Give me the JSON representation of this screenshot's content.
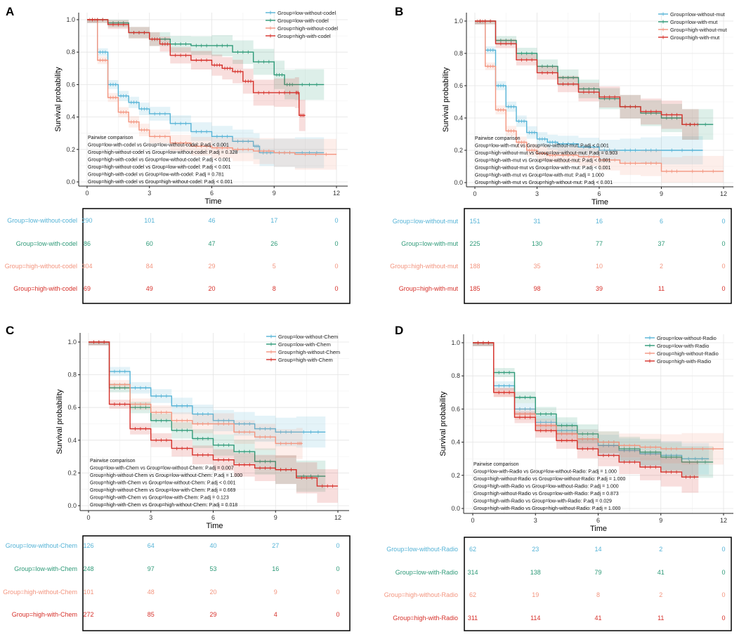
{
  "figure": {
    "colors": {
      "c0": "#55b3d6",
      "c1": "#2e9a78",
      "c2": "#f3957f",
      "c3": "#d6302a"
    }
  },
  "chart_data": [
    {
      "type": "line",
      "panel": "A",
      "xlabel": "Time",
      "ylabel": "Survival probability",
      "xlim": [
        0,
        12
      ],
      "ylim": [
        0,
        1
      ],
      "xticks": [
        "0",
        "3",
        "6",
        "9",
        "12"
      ],
      "yticks": [
        "0.0",
        "0.2",
        "0.4",
        "0.6",
        "0.8",
        "1.0"
      ],
      "series": [
        {
          "name": "Group=low-without-codel",
          "x": [
            0,
            0.5,
            1,
            1.5,
            2,
            2.5,
            3,
            4,
            5,
            6,
            7,
            8,
            8.3,
            9,
            10,
            11.4
          ],
          "y": [
            1,
            0.8,
            0.6,
            0.53,
            0.49,
            0.45,
            0.42,
            0.36,
            0.31,
            0.28,
            0.25,
            0.22,
            0.18,
            0.18,
            0.18,
            0.18
          ]
        },
        {
          "name": "Group=low-with-codel",
          "x": [
            0,
            1,
            2,
            3,
            4,
            5,
            6,
            7,
            8,
            9,
            9.5,
            10,
            11.4
          ],
          "y": [
            1,
            0.98,
            0.92,
            0.88,
            0.85,
            0.84,
            0.84,
            0.8,
            0.74,
            0.66,
            0.6,
            0.6,
            0.6
          ]
        },
        {
          "name": "Group=high-without-codel",
          "x": [
            0,
            0.5,
            1,
            1.5,
            2,
            2.5,
            3,
            4,
            5,
            6,
            7,
            8,
            9,
            10,
            12
          ],
          "y": [
            1,
            0.75,
            0.52,
            0.43,
            0.37,
            0.32,
            0.28,
            0.24,
            0.22,
            0.21,
            0.2,
            0.19,
            0.18,
            0.17,
            0.17
          ]
        },
        {
          "name": "Group=high-with-codel",
          "x": [
            0,
            1,
            2,
            3,
            3.5,
            4,
            5,
            6,
            6.5,
            7,
            7.5,
            8,
            9,
            10,
            10.2,
            10.5
          ],
          "y": [
            1,
            0.97,
            0.92,
            0.88,
            0.85,
            0.78,
            0.75,
            0.72,
            0.7,
            0.68,
            0.62,
            0.55,
            0.55,
            0.55,
            0.41,
            0.41
          ]
        }
      ],
      "pairwise": [
        "Pairwise comparison",
        "Group=low-with-codel vs Group=low-without-codel: P.adj < 0.001",
        "Group=high-without-codel vs Group=low-without-codel: P.adj = 0.328",
        "Group=high-with-codel vs Group=low-without-codel: P.adj < 0.001",
        "Group=high-without-codel vs Group=low-with-codel: P.adj < 0.001",
        "Group=high-with-codel vs Group=low-with-codel: P.adj = 0.781",
        "Group=high-with-codel vs Group=high-without-codel: P.adj < 0.001"
      ],
      "risk_table": [
        {
          "group": "Group=low-without-codel",
          "n": [
            "290",
            "101",
            "46",
            "17",
            "0"
          ]
        },
        {
          "group": "Group=low-with-codel",
          "n": [
            "86",
            "60",
            "47",
            "26",
            "0"
          ]
        },
        {
          "group": "Group=high-without-codel",
          "n": [
            "304",
            "84",
            "29",
            "5",
            "0"
          ]
        },
        {
          "group": "Group=high-with-codel",
          "n": [
            "69",
            "49",
            "20",
            "8",
            "0"
          ]
        }
      ]
    },
    {
      "type": "line",
      "panel": "B",
      "xlabel": "Time",
      "ylabel": "Survival probability",
      "xlim": [
        0,
        12
      ],
      "ylim": [
        0,
        1
      ],
      "xticks": [
        "0",
        "3",
        "6",
        "9",
        "12"
      ],
      "yticks": [
        "0.0",
        "0.2",
        "0.4",
        "0.6",
        "0.8",
        "1.0"
      ],
      "series": [
        {
          "name": "Group=low-without-mut",
          "x": [
            0,
            0.5,
            1,
            1.5,
            2,
            2.5,
            3,
            3.5,
            4,
            5,
            6,
            7,
            8,
            9,
            11
          ],
          "y": [
            1,
            0.82,
            0.6,
            0.47,
            0.38,
            0.31,
            0.27,
            0.25,
            0.24,
            0.22,
            0.2,
            0.2,
            0.2,
            0.2,
            0.2
          ]
        },
        {
          "name": "Group=low-with-mut",
          "x": [
            0,
            1,
            2,
            3,
            4,
            5,
            6,
            7,
            8,
            9,
            10,
            11.5
          ],
          "y": [
            1,
            0.88,
            0.8,
            0.72,
            0.65,
            0.58,
            0.52,
            0.47,
            0.43,
            0.4,
            0.36,
            0.36
          ]
        },
        {
          "name": "Group=high-without-mut",
          "x": [
            0,
            0.5,
            1,
            1.5,
            2,
            2.5,
            3,
            3.5,
            4,
            5,
            6,
            7,
            8,
            9,
            10,
            12
          ],
          "y": [
            1,
            0.72,
            0.45,
            0.32,
            0.25,
            0.2,
            0.18,
            0.17,
            0.17,
            0.16,
            0.14,
            0.12,
            0.12,
            0.07,
            0.07,
            0.07
          ]
        },
        {
          "name": "Group=high-with-mut",
          "x": [
            0,
            1,
            2,
            3,
            4,
            5,
            6,
            7,
            8,
            9,
            10,
            10.8
          ],
          "y": [
            1,
            0.86,
            0.76,
            0.68,
            0.61,
            0.56,
            0.53,
            0.47,
            0.44,
            0.42,
            0.36,
            0.36
          ]
        }
      ],
      "pairwise": [
        "Pairwise comparison",
        "Group=low-with-mut vs Group=low-without-mut: P.adj < 0.001",
        "Group=high-without-mut vs Group=low-without-mut: P.adj = 0.903",
        "Group=high-with-mut vs Group=low-without-mut: P.adj < 0.001",
        "Group=high-without-mut vs Group=low-with-mut: P.adj < 0.001",
        "Group=high-with-mut vs Group=low-with-mut: P.adj = 1.000",
        "Group=high-with-mut vs Group=high-without-mut: P.adj < 0.001"
      ],
      "risk_table": [
        {
          "group": "Group=low-without-mut",
          "n": [
            "151",
            "31",
            "16",
            "6",
            "0"
          ]
        },
        {
          "group": "Group=low-with-mut",
          "n": [
            "225",
            "130",
            "77",
            "37",
            "0"
          ]
        },
        {
          "group": "Group=high-without-mut",
          "n": [
            "188",
            "35",
            "10",
            "2",
            "0"
          ]
        },
        {
          "group": "Group=high-with-mut",
          "n": [
            "185",
            "98",
            "39",
            "11",
            "0"
          ]
        }
      ]
    },
    {
      "type": "line",
      "panel": "C",
      "xlabel": "Time",
      "ylabel": "Survival probability",
      "xlim": [
        0,
        12
      ],
      "ylim": [
        0,
        1
      ],
      "xticks": [
        "0",
        "3",
        "6",
        "9",
        "12"
      ],
      "yticks": [
        "0.0",
        "0.2",
        "0.4",
        "0.6",
        "0.8",
        "1.0"
      ],
      "series": [
        {
          "name": "Group=low-without-Chem",
          "x": [
            0,
            1,
            2,
            3,
            4,
            5,
            6,
            7,
            8,
            9,
            10,
            11.4
          ],
          "y": [
            1,
            0.82,
            0.72,
            0.67,
            0.61,
            0.56,
            0.52,
            0.5,
            0.47,
            0.45,
            0.45,
            0.45
          ]
        },
        {
          "name": "Group=low-with-Chem",
          "x": [
            0,
            1,
            2,
            3,
            4,
            5,
            6,
            7,
            8,
            9,
            10,
            11.4
          ],
          "y": [
            1,
            0.72,
            0.6,
            0.52,
            0.46,
            0.41,
            0.37,
            0.33,
            0.27,
            0.22,
            0.18,
            0.18
          ]
        },
        {
          "name": "Group=high-without-Chem",
          "x": [
            0,
            1,
            2,
            3,
            4,
            5,
            6,
            7,
            8,
            9,
            10,
            10.3
          ],
          "y": [
            1,
            0.74,
            0.62,
            0.57,
            0.52,
            0.5,
            0.5,
            0.45,
            0.42,
            0.38,
            0.38,
            0.38
          ]
        },
        {
          "name": "Group=high-with-Chem",
          "x": [
            0,
            1,
            2,
            3,
            4,
            5,
            6,
            7,
            8,
            9,
            10,
            11,
            12
          ],
          "y": [
            1,
            0.62,
            0.47,
            0.4,
            0.35,
            0.31,
            0.28,
            0.25,
            0.23,
            0.22,
            0.17,
            0.12,
            0.12
          ]
        }
      ],
      "pairwise": [
        "Pairwise comparison",
        "Group=low-with-Chem vs Group=low-without-Chem: P.adj = 0.007",
        "Group=high-without-Chem vs Group=low-without-Chem: P.adj = 1.000",
        "Group=high-with-Chem vs Group=low-without-Chem: P.adj < 0.001",
        "Group=high-without-Chem vs Group=low-with-Chem: P.adj = 0.669",
        "Group=high-with-Chem vs Group=low-with-Chem: P.adj = 0.123",
        "Group=high-with-Chem vs Group=high-without-Chem: P.adj = 0.018"
      ],
      "risk_table": [
        {
          "group": "Group=low-without-Chem",
          "n": [
            "126",
            "64",
            "40",
            "27",
            "0"
          ]
        },
        {
          "group": "Group=low-with-Chem",
          "n": [
            "248",
            "97",
            "53",
            "16",
            "0"
          ]
        },
        {
          "group": "Group=high-without-Chem",
          "n": [
            "101",
            "48",
            "20",
            "9",
            "0"
          ]
        },
        {
          "group": "Group=high-with-Chem",
          "n": [
            "272",
            "85",
            "29",
            "4",
            "0"
          ]
        }
      ]
    },
    {
      "type": "line",
      "panel": "D",
      "xlabel": "Time",
      "ylabel": "Survival probability",
      "xlim": [
        0,
        12
      ],
      "ylim": [
        0,
        1
      ],
      "xticks": [
        "0",
        "3",
        "6",
        "9",
        "12"
      ],
      "yticks": [
        "0.0",
        "0.2",
        "0.4",
        "0.6",
        "0.8",
        "1.0"
      ],
      "series": [
        {
          "name": "Group=low-without-Radio",
          "x": [
            0,
            1,
            2,
            3,
            4,
            5,
            6,
            7,
            8,
            9,
            10,
            11.3
          ],
          "y": [
            1,
            0.74,
            0.6,
            0.52,
            0.47,
            0.42,
            0.38,
            0.35,
            0.33,
            0.32,
            0.3,
            0.3
          ]
        },
        {
          "name": "Group=low-with-Radio",
          "x": [
            0,
            1,
            2,
            3,
            4,
            5,
            6,
            7,
            8,
            9,
            10,
            11.5
          ],
          "y": [
            1,
            0.82,
            0.67,
            0.57,
            0.5,
            0.45,
            0.4,
            0.36,
            0.34,
            0.31,
            0.28,
            0.28
          ]
        },
        {
          "name": "Group=high-without-Radio",
          "x": [
            0,
            1,
            2,
            3,
            4,
            5,
            6,
            7,
            8,
            9,
            10,
            12
          ],
          "y": [
            1,
            0.7,
            0.57,
            0.5,
            0.45,
            0.42,
            0.4,
            0.38,
            0.37,
            0.36,
            0.36,
            0.36
          ]
        },
        {
          "name": "Group=high-with-Radio",
          "x": [
            0,
            1,
            2,
            3,
            4,
            5,
            6,
            7,
            8,
            9,
            10,
            10.8
          ],
          "y": [
            1,
            0.7,
            0.55,
            0.47,
            0.41,
            0.36,
            0.32,
            0.28,
            0.25,
            0.22,
            0.19,
            0.19
          ]
        }
      ],
      "pairwise": [
        "Pairwise comparison",
        "Group=low-with-Radio vs Group=low-without-Radio: P.adj = 1.000",
        "Group=high-without-Radio vs Group=low-without-Radio: P.adj = 1.000",
        "Group=high-with-Radio vs Group=low-without-Radio: P.adj = 1.000",
        "Group=high-without-Radio vs Group=low-with-Radio: P.adj = 0.873",
        "Group=high-with-Radio vs Group=low-with-Radio: P.adj = 0.029",
        "Group=high-with-Radio vs Group=high-without-Radio: P.adj = 1.000"
      ],
      "risk_table": [
        {
          "group": "Group=low-without-Radio",
          "n": [
            "62",
            "23",
            "14",
            "2",
            "0"
          ]
        },
        {
          "group": "Group=low-with-Radio",
          "n": [
            "314",
            "138",
            "79",
            "41",
            "0"
          ]
        },
        {
          "group": "Group=high-without-Radio",
          "n": [
            "62",
            "19",
            "8",
            "2",
            "0"
          ]
        },
        {
          "group": "Group=high-with-Radio",
          "n": [
            "311",
            "114",
            "41",
            "11",
            "0"
          ]
        }
      ]
    }
  ]
}
